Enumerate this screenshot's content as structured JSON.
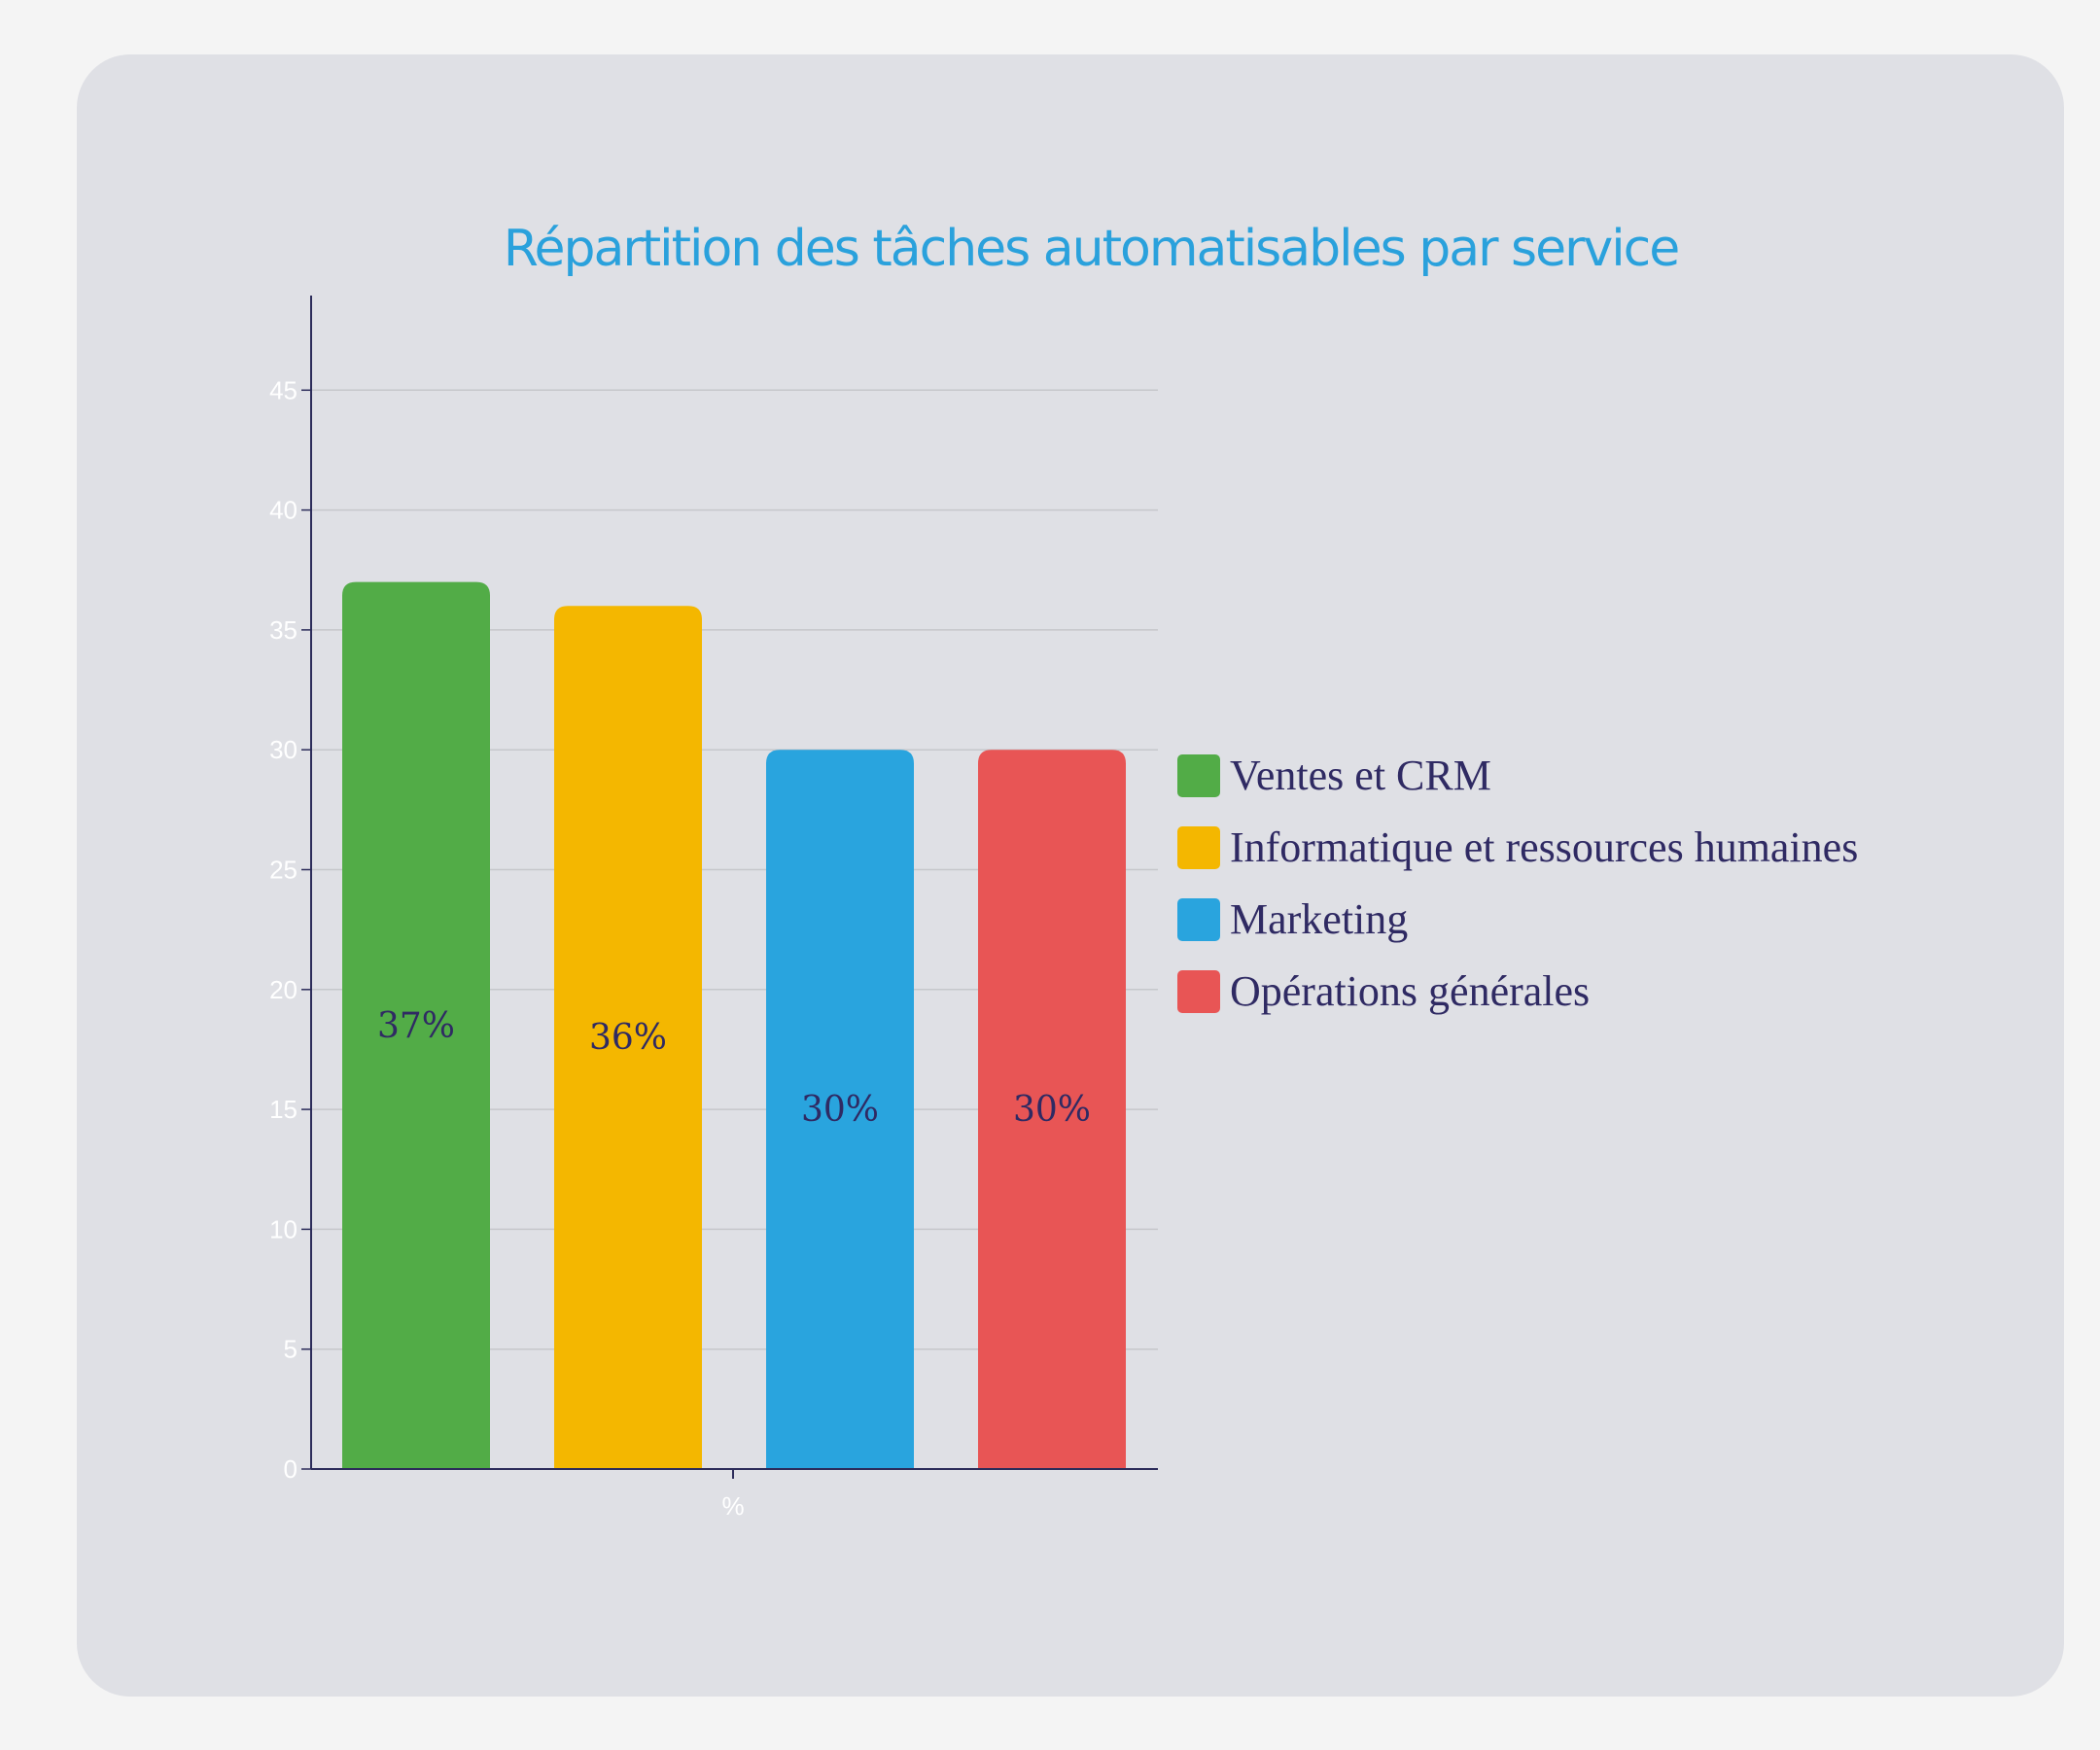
{
  "chart_data": {
    "type": "bar",
    "title": "Répartition des tâches automatisables par service",
    "xlabel": "%",
    "ylabel": "",
    "ylim": [
      0,
      49
    ],
    "yticks": [
      0,
      5,
      10,
      15,
      20,
      25,
      30,
      35,
      40,
      45
    ],
    "grid": true,
    "legend_position": "right",
    "series": [
      {
        "name": "Ventes et CRM",
        "value": 37,
        "label": "37%",
        "color": "#52ac47"
      },
      {
        "name": "Informatique et ressources humaines",
        "value": 36,
        "label": "36%",
        "color": "#f4b700"
      },
      {
        "name": "Marketing",
        "value": 30,
        "label": "30%",
        "color": "#29a4de"
      },
      {
        "name": "Opérations générales",
        "value": 30,
        "label": "30%",
        "color": "#e85555"
      }
    ]
  },
  "colors": {
    "title": "#2aa1dc",
    "tick_text": "#ffffff",
    "grid": "#c6c7cb",
    "axis": "#2c2c5a",
    "bar_label": "#2f2a63",
    "legend_text": "#2f2a63"
  }
}
